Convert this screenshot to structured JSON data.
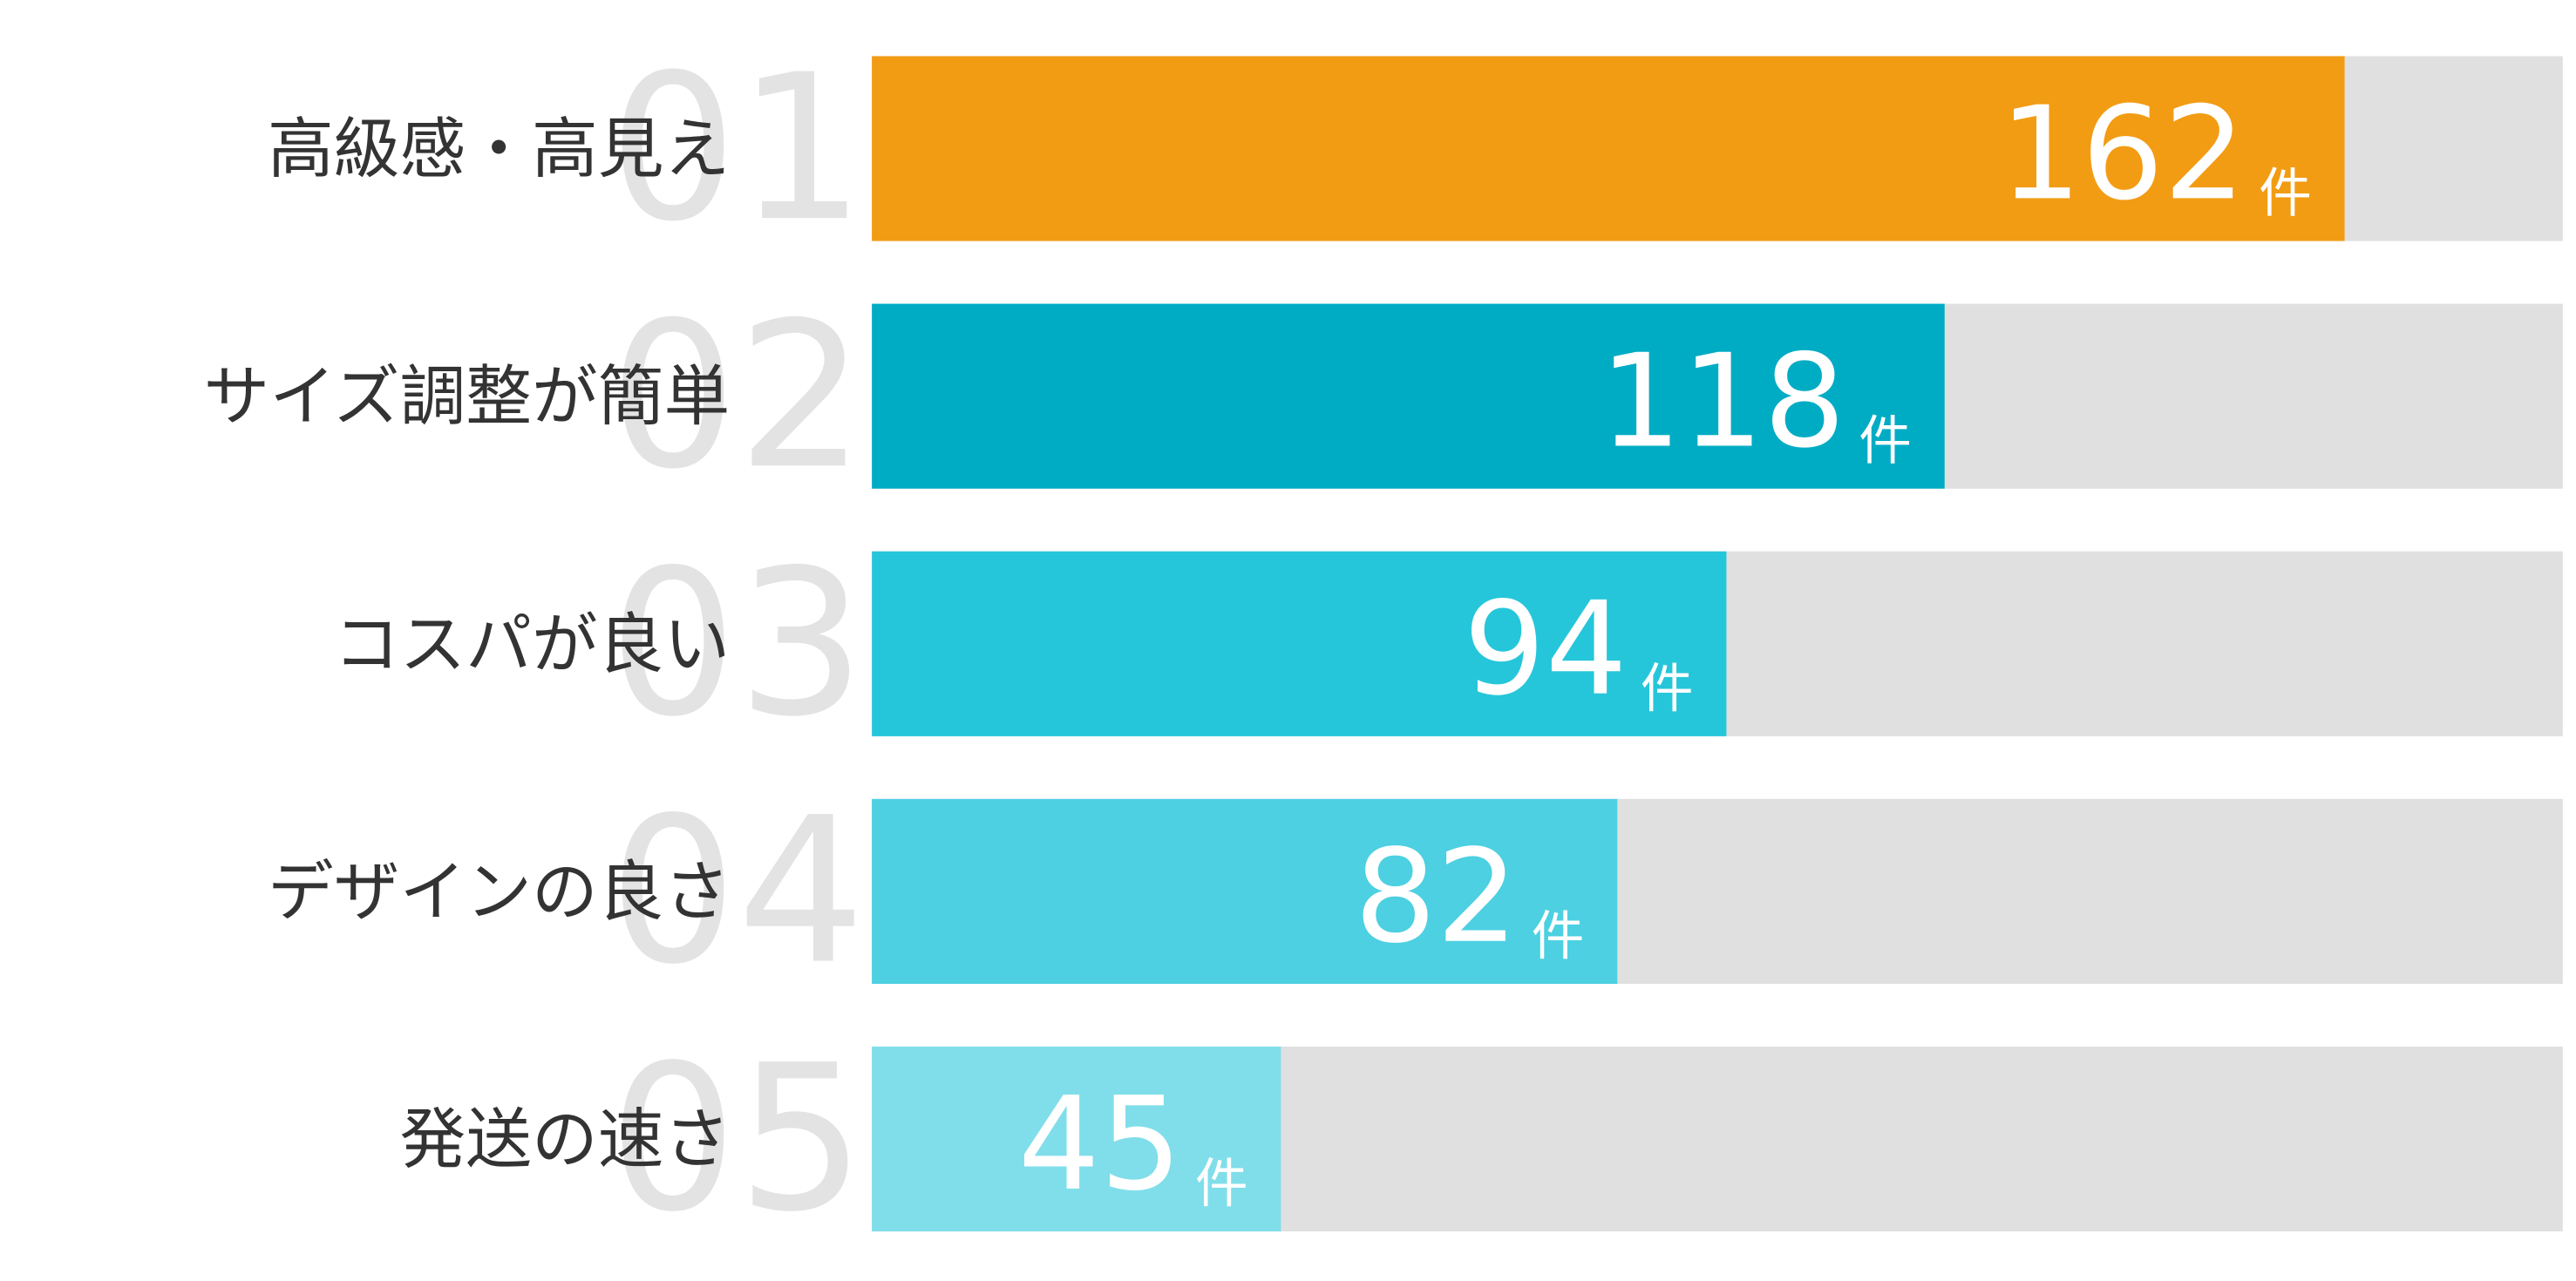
{
  "chart_data": {
    "type": "bar",
    "orientation": "horizontal",
    "categories": [
      "高級感・高見え",
      "サイズ調整が簡単",
      "コスパが良い",
      "デザインの良さ",
      "発送の速さ"
    ],
    "ranks": [
      "01",
      "02",
      "03",
      "04",
      "05"
    ],
    "values": [
      162,
      118,
      94,
      82,
      45
    ],
    "unit": "件",
    "colors": [
      "#f29c14",
      "#00acc4",
      "#26c6da",
      "#4dd0e1",
      "#80deea"
    ],
    "track_color": "#e0e0e0",
    "xlim": [
      0,
      186
    ]
  }
}
